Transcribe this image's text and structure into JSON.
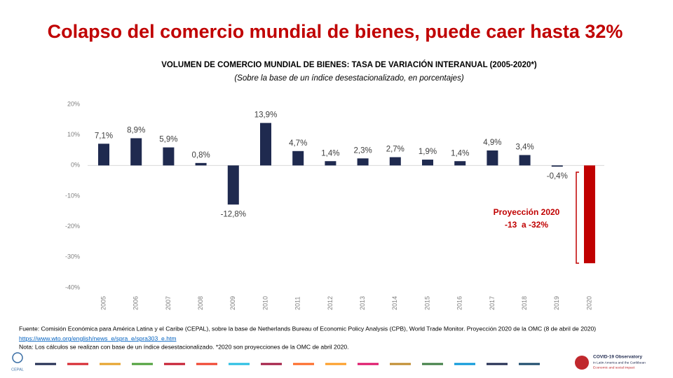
{
  "page_title": "Colapso del comercio mundial de bienes, puede caer hasta 32%",
  "chart_data": {
    "type": "bar",
    "title": "VOLUMEN DE COMERCIO MUNDIAL DE BIENES: TASA DE VARIACIÓN INTERANUAL (2005-2020*)",
    "subtitle": "(Sobre la base de un índice desestacionalizado, en porcentajes)",
    "categories": [
      "2005",
      "2006",
      "2007",
      "2008",
      "2009",
      "2010",
      "2011",
      "2012",
      "2013",
      "2014",
      "2015",
      "2016",
      "2017",
      "2018",
      "2019",
      "2020"
    ],
    "values": [
      7.1,
      8.9,
      5.9,
      0.8,
      -12.8,
      13.9,
      4.7,
      1.4,
      2.3,
      2.7,
      1.9,
      1.4,
      4.9,
      3.4,
      -0.4,
      -32
    ],
    "value_labels": [
      "7,1%",
      "8,9%",
      "5,9%",
      "0,8%",
      "-12,8%",
      "13,9%",
      "4,7%",
      "1,4%",
      "2,3%",
      "2,7%",
      "1,9%",
      "1,4%",
      "4,9%",
      "3,4%",
      "-0,4%",
      null
    ],
    "colors": [
      "#1f2a4f",
      "#1f2a4f",
      "#1f2a4f",
      "#1f2a4f",
      "#1f2a4f",
      "#1f2a4f",
      "#1f2a4f",
      "#1f2a4f",
      "#1f2a4f",
      "#1f2a4f",
      "#1f2a4f",
      "#1f2a4f",
      "#1f2a4f",
      "#1f2a4f",
      "#1f2a4f",
      "#c00000"
    ],
    "ylim": [
      -40,
      20
    ],
    "yticks": [
      {
        "value": -40,
        "label": "-40%"
      },
      {
        "value": -30,
        "label": "-30%"
      },
      {
        "value": -20,
        "label": "-20%"
      },
      {
        "value": -10,
        "label": "-10%"
      },
      {
        "value": 0,
        "label": "0%"
      },
      {
        "value": 10,
        "label": "10%"
      },
      {
        "value": 20,
        "label": "20%"
      }
    ],
    "grid": false,
    "annotations": [
      "Proyección 2020",
      "-13  a -32%"
    ]
  },
  "footer": {
    "source": "Fuente: Comisión Económica para América Latina y el Caribe (CEPAL), sobre la base de Netherlands Bureau of Economic Policy Analysis (CPB), World Trade Monitor. Proyección 2020 de la OMC (8 de abril de 2020)",
    "url": "https://www.wto.org/english/news_e/spra_e/spra303_e.htm",
    "note": "Nota: Los cálculos se realizan con base de un índice desestacionalizado. *2020 son proyecciones de la OMC de abril 2020.",
    "logo_left": "CEPAL",
    "logo_right": [
      "COVID-19 Observatory",
      "in Latin America and the Caribbean",
      "Economic and social impact"
    ]
  }
}
